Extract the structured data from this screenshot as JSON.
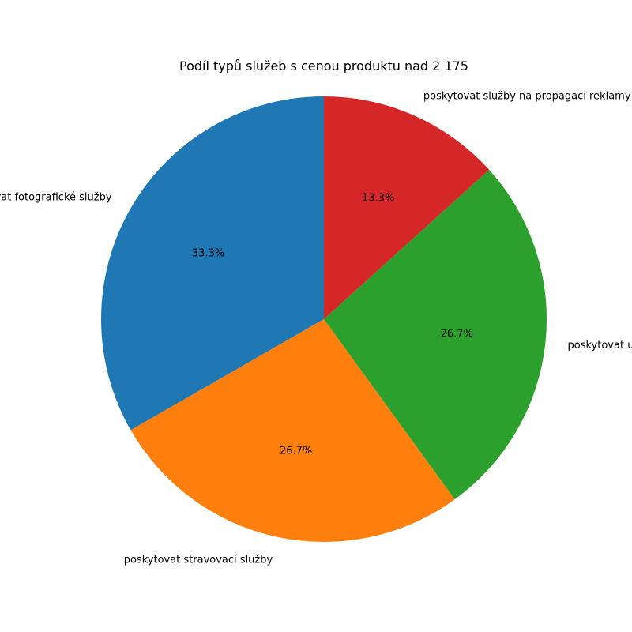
{
  "chart_data": {
    "type": "pie",
    "title": "Podíl typů služeb s cenou produktu nad 2 175",
    "slices": [
      {
        "label": "poskytovat fotografické služby",
        "value": 33.3,
        "pct_label": "33.3%",
        "color": "#1f77b4"
      },
      {
        "label": "poskytovat stravovací služby",
        "value": 26.7,
        "pct_label": "26.7%",
        "color": "#ff7f0e"
      },
      {
        "label": "poskytovat ubytovací služby",
        "value": 26.7,
        "pct_label": "26.7%",
        "color": "#2ca02c"
      },
      {
        "label": "poskytovat služby na propagaci reklamy",
        "value": 13.3,
        "pct_label": "13.3%",
        "color": "#d62728"
      }
    ],
    "start_angle": "top",
    "direction": "counterclockwise",
    "legend": "none"
  }
}
